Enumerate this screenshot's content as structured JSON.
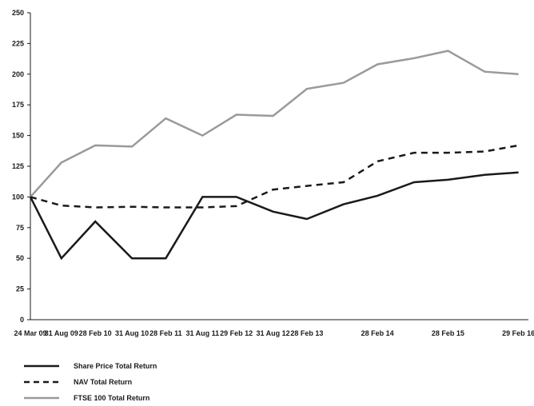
{
  "chart_data": {
    "type": "line",
    "title": "",
    "xlabel": "",
    "ylabel": "",
    "ylim": [
      0,
      250
    ],
    "yticks": [
      0,
      25,
      50,
      75,
      100,
      125,
      150,
      175,
      200,
      225,
      250
    ],
    "grid": false,
    "legend_position": "bottom-left",
    "categories": [
      "24 Mar 09",
      "31 Aug 09",
      "28 Feb 10",
      "31 Aug 10",
      "28 Feb 11",
      "31 Aug 11",
      "29 Feb 12",
      "31 Aug 12",
      "28 Feb 13",
      "28 Feb 14",
      "28 Feb 15",
      "29 Feb 16"
    ],
    "x_positions": [
      0,
      0.44,
      0.92,
      1.44,
      1.92,
      2.44,
      2.92,
      3.44,
      3.92,
      4.92,
      5.92,
      6.92
    ],
    "series": [
      {
        "name": "Share Price Total Return",
        "color": "#1a1a1a",
        "style": "solid",
        "values": [
          100,
          50,
          80,
          50,
          50,
          100,
          100,
          88,
          82,
          94,
          101,
          112,
          114,
          118,
          120
        ],
        "x": [
          0,
          0.44,
          0.92,
          1.44,
          1.92,
          2.44,
          2.92,
          3.44,
          3.92,
          4.44,
          4.92,
          5.44,
          5.92,
          6.44,
          6.92
        ]
      },
      {
        "name": "NAV Total Return",
        "color": "#1a1a1a",
        "style": "dashed",
        "values": [
          100,
          93,
          91.5,
          92,
          91.5,
          91.5,
          92.5,
          106,
          109,
          112,
          129,
          136,
          136,
          137,
          142
        ],
        "x": [
          0,
          0.44,
          0.92,
          1.44,
          1.92,
          2.44,
          2.92,
          3.44,
          3.92,
          4.44,
          4.92,
          5.44,
          5.92,
          6.44,
          6.92
        ]
      },
      {
        "name": "FTSE 100 Total Return",
        "color": "#9a9a9a",
        "style": "solid",
        "values": [
          100,
          128,
          142,
          141,
          164,
          150,
          167,
          166,
          188,
          193,
          208,
          213,
          219,
          202,
          200
        ],
        "x": [
          0,
          0.44,
          0.92,
          1.44,
          1.92,
          2.44,
          2.92,
          3.44,
          3.92,
          4.44,
          4.92,
          5.44,
          5.92,
          6.44,
          6.92
        ]
      }
    ]
  }
}
